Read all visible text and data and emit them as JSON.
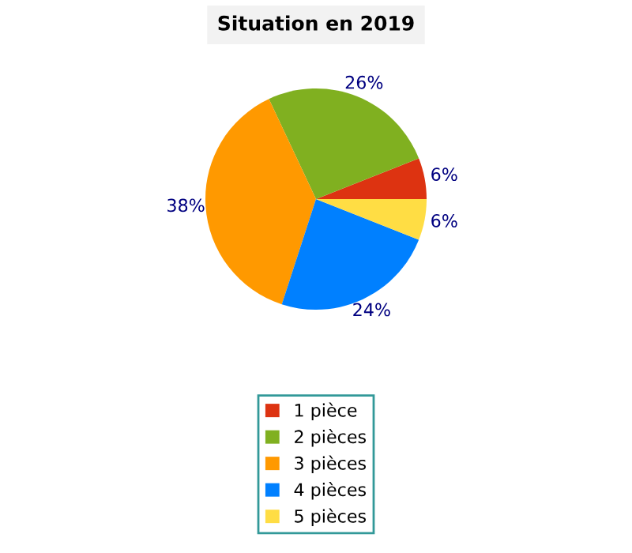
{
  "chart_data": {
    "type": "pie",
    "title": "Situation en 2019",
    "categories": [
      "1 pièce",
      "2 pièces",
      "3 pièces",
      "4 pièces",
      "5 pièces"
    ],
    "values": [
      6,
      26,
      38,
      24,
      6
    ],
    "value_labels": [
      "6%",
      "26%",
      "38%",
      "24%",
      "6%"
    ],
    "colors": [
      "#dd3311",
      "#80b020",
      "#ff9900",
      "#0080ff",
      "#ffdd44"
    ],
    "legend": "bottom"
  }
}
